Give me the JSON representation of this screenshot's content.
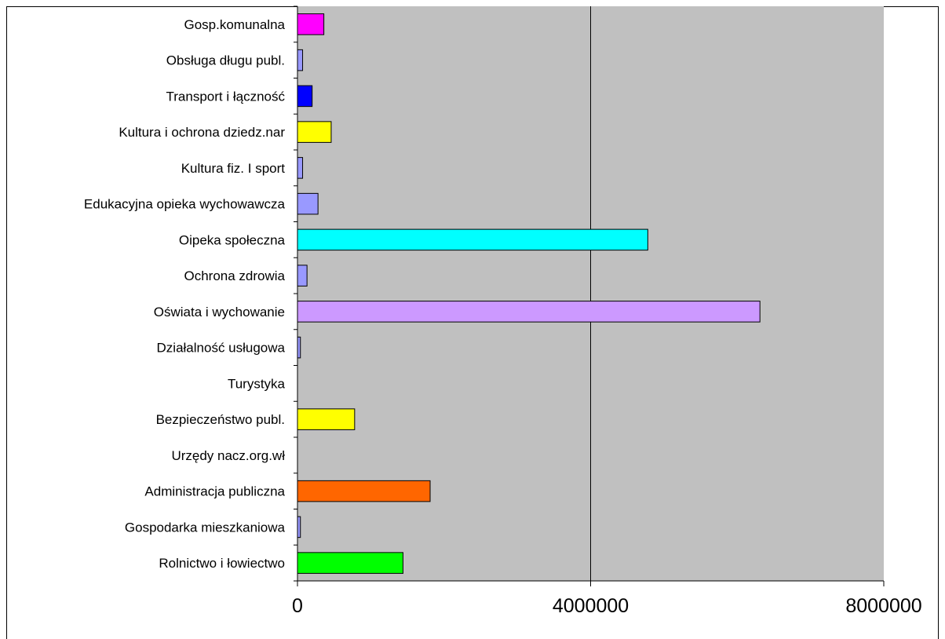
{
  "chart_data": {
    "type": "bar",
    "orientation": "horizontal",
    "categories": [
      "Gosp.komunalna",
      "Obsługa długu publ.",
      "Transport i łączność",
      "Kultura i ochrona dziedz.nar",
      "Kultura fiz. I sport",
      "Edukacyjna opieka wychowawcza",
      "Oipeka społeczna",
      "Ochrona zdrowia",
      "Oświata i wychowanie",
      "Działalność usługowa",
      "Turystyka",
      "Bezpieczeństwo publ.",
      "Urzędy nacz.org.wł",
      "Administracja publiczna",
      "Gospodarka mieszkaniowa",
      "Rolnictwo i łowiectwo"
    ],
    "values": [
      360000,
      70000,
      200000,
      460000,
      70000,
      280000,
      4780000,
      130000,
      6310000,
      40000,
      0,
      780000,
      0,
      1810000,
      40000,
      1440000
    ],
    "colors": [
      "#ff00ff",
      "#9999ff",
      "#0000ff",
      "#ffff00",
      "#9999ff",
      "#9999ff",
      "#00ffff",
      "#9999ff",
      "#cc99ff",
      "#9999ff",
      "#9999ff",
      "#ffff00",
      "#9999ff",
      "#ff6600",
      "#9999ff",
      "#00ff00"
    ],
    "xlim": [
      0,
      8000000
    ],
    "xticks": [
      "0",
      "4000000",
      "8000000"
    ],
    "grid": "vertical major gridlines",
    "plot_background": "#c0c0c0",
    "legend": "none"
  }
}
